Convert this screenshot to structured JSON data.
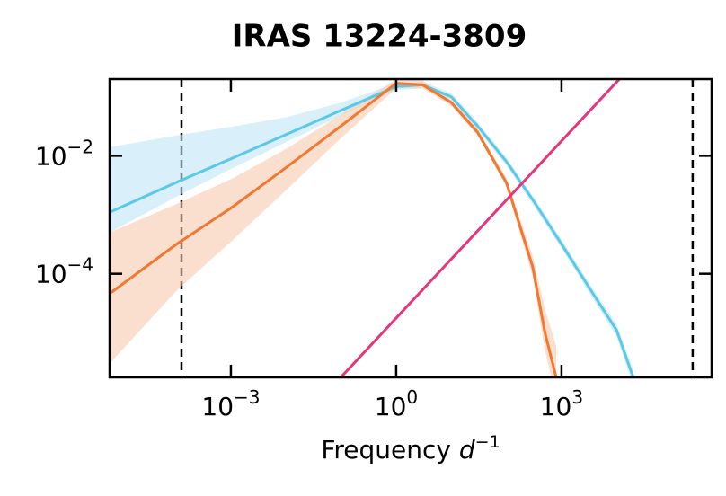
{
  "chart_data": {
    "type": "line",
    "title": "IRAS 13224-3809",
    "xlabel": "Frequency",
    "xlabel_unit": "d",
    "xlabel_unit_exponent": "−1",
    "xscale": "log",
    "yscale": "log",
    "xlim": [
      6.3e-06,
      530000.0
    ],
    "ylim": [
      1.75e-06,
      0.2
    ],
    "xticks": [
      {
        "value": 0.001,
        "label": "10",
        "exponent": "−3"
      },
      {
        "value": 1,
        "label": "10",
        "exponent": "0"
      },
      {
        "value": 1000,
        "label": "10",
        "exponent": "3"
      }
    ],
    "yticks": [
      {
        "value": 0.01,
        "label": "10",
        "exponent": "−2"
      },
      {
        "value": 0.0001,
        "label": "10",
        "exponent": "−4"
      }
    ],
    "vlines": [
      0.000127,
      240000.0
    ],
    "series": [
      {
        "color": "#5bc8e8",
        "band_color": "#bfe6f7",
        "x": [
          6.3e-06,
          0.0001,
          0.001,
          0.01,
          0.1,
          1,
          3,
          10,
          30,
          100,
          300,
          1000,
          3000,
          10000.0,
          20000.0
        ],
        "values": [
          0.0011,
          0.0035,
          0.0089,
          0.023,
          0.059,
          0.15,
          0.16,
          0.1,
          0.032,
          0.008,
          0.0018,
          0.00032,
          6.3e-05,
          1.1e-05,
          1.75e-06
        ],
        "lower": [
          0.0005,
          0.002,
          0.006,
          0.017,
          0.048,
          0.13,
          0.14,
          0.085,
          0.027,
          0.0068,
          0.0015,
          0.00027,
          5.2e-05,
          8.5e-06,
          1.3e-06
        ],
        "upper": [
          0.014,
          0.022,
          0.031,
          0.045,
          0.08,
          0.17,
          0.18,
          0.115,
          0.037,
          0.0093,
          0.0021,
          0.00038,
          7.6e-05,
          1.4e-05,
          2.4e-06
        ]
      },
      {
        "color": "#f07830",
        "band_color": "#f9c9ae",
        "x": [
          6.3e-06,
          0.0001,
          0.001,
          0.01,
          0.1,
          1,
          3,
          10,
          30,
          100,
          300,
          500,
          800
        ],
        "values": [
          4.6e-05,
          0.00031,
          0.0013,
          0.0063,
          0.032,
          0.17,
          0.16,
          0.08,
          0.025,
          0.0035,
          0.00013,
          1e-05,
          1.75e-06
        ],
        "lower": [
          3e-06,
          5e-05,
          0.00035,
          0.0026,
          0.02,
          0.14,
          0.14,
          0.07,
          0.022,
          0.003,
          9e-05,
          5e-06,
          8e-07
        ],
        "upper": [
          0.0005,
          0.0015,
          0.004,
          0.013,
          0.05,
          0.2,
          0.19,
          0.09,
          0.029,
          0.0042,
          0.0002,
          2.5e-05,
          6e-06
        ]
      },
      {
        "color": "#e8347a",
        "x": [
          0.098,
          12000
        ],
        "values": [
          1.74e-06,
          0.214
        ]
      }
    ]
  }
}
